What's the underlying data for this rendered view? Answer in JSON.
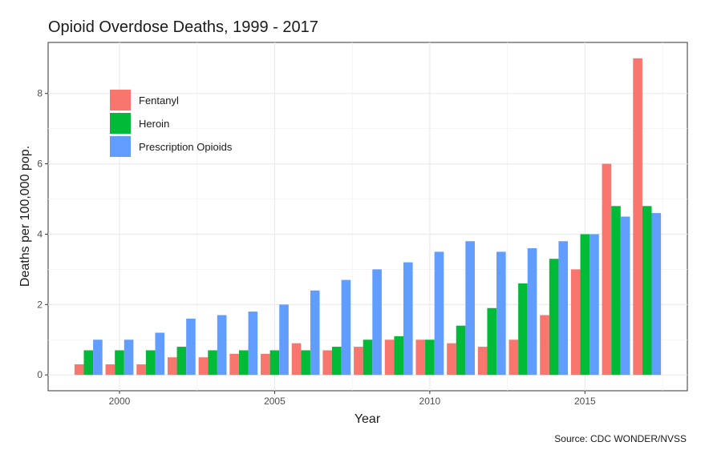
{
  "chart_data": {
    "type": "bar",
    "title": "Opioid Overdose Deaths, 1999 - 2017",
    "xlabel": "Year",
    "ylabel": "Deaths per 100,000 pop.",
    "caption": "Source: CDC WONDER/NVSS",
    "x": [
      1999,
      2000,
      2001,
      2002,
      2003,
      2004,
      2005,
      2006,
      2007,
      2008,
      2009,
      2010,
      2011,
      2012,
      2013,
      2014,
      2015,
      2016,
      2017
    ],
    "x_ticks": [
      2000,
      2005,
      2010,
      2015
    ],
    "x_tick_labels": [
      "2000",
      "2005",
      "2010",
      "2015"
    ],
    "y_ticks": [
      0,
      2,
      4,
      6,
      8
    ],
    "y_tick_labels": [
      "0",
      "2",
      "4",
      "6",
      "8"
    ],
    "ylim": [
      -0.45,
      9.45
    ],
    "xlim": [
      1997.7,
      2018.3
    ],
    "grid": true,
    "legend_position": "top-left",
    "series": [
      {
        "name": "Fentanyl",
        "color": "#F8766D",
        "values": [
          0.3,
          0.3,
          0.3,
          0.5,
          0.5,
          0.6,
          0.6,
          0.9,
          0.7,
          0.8,
          1.0,
          1.0,
          0.9,
          0.8,
          1.0,
          1.7,
          3.0,
          6.0,
          9.0
        ]
      },
      {
        "name": "Heroin",
        "color": "#00BA38",
        "values": [
          0.7,
          0.7,
          0.7,
          0.8,
          0.7,
          0.7,
          0.7,
          0.7,
          0.8,
          1.0,
          1.1,
          1.0,
          1.4,
          1.9,
          2.6,
          3.3,
          4.0,
          4.8,
          4.8
        ]
      },
      {
        "name": "Prescription Opioids",
        "color": "#619CFF",
        "values": [
          1.0,
          1.0,
          1.2,
          1.6,
          1.7,
          1.8,
          2.0,
          2.4,
          2.7,
          3.0,
          3.2,
          3.5,
          3.8,
          3.5,
          3.6,
          3.8,
          4.0,
          4.5,
          4.6
        ]
      }
    ]
  }
}
